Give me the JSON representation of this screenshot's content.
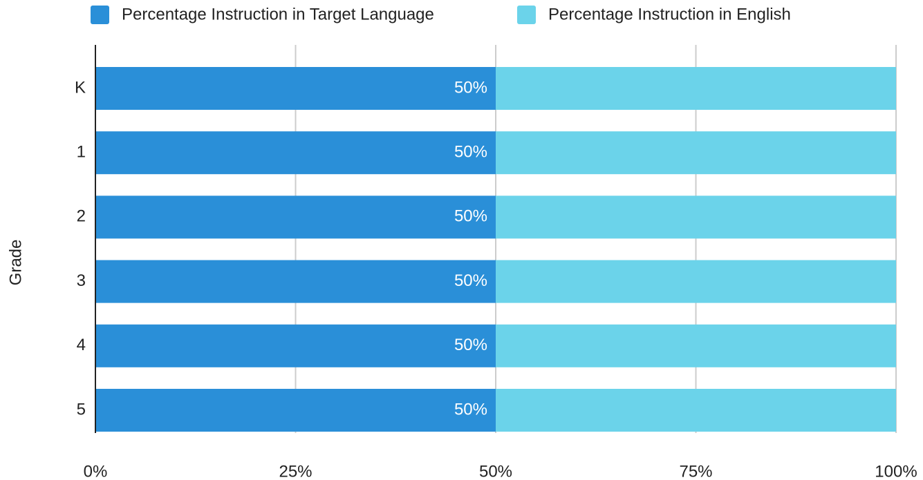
{
  "chart_data": {
    "type": "bar",
    "orientation": "horizontal",
    "stacked": true,
    "y_axis_label": "Grade",
    "categories": [
      "K",
      "1",
      "2",
      "3",
      "4",
      "5"
    ],
    "series": [
      {
        "name": "Percentage Instruction in Target Language",
        "color": "#2a8fd8",
        "values": [
          50,
          50,
          50,
          50,
          50,
          50
        ],
        "value_labels": [
          "50%",
          "50%",
          "50%",
          "50%",
          "50%",
          "50%"
        ]
      },
      {
        "name": "Percentage Instruction in English",
        "color": "#6bd3ea",
        "values": [
          50,
          50,
          50,
          50,
          50,
          50
        ]
      }
    ],
    "xlim": [
      0,
      100
    ],
    "xticks": [
      {
        "value": 0,
        "label": "0%"
      },
      {
        "value": 25,
        "label": "25%"
      },
      {
        "value": 50,
        "label": "50%"
      },
      {
        "value": 75,
        "label": "75%"
      },
      {
        "value": 100,
        "label": "100%"
      }
    ],
    "grid": true,
    "legend": "top"
  }
}
